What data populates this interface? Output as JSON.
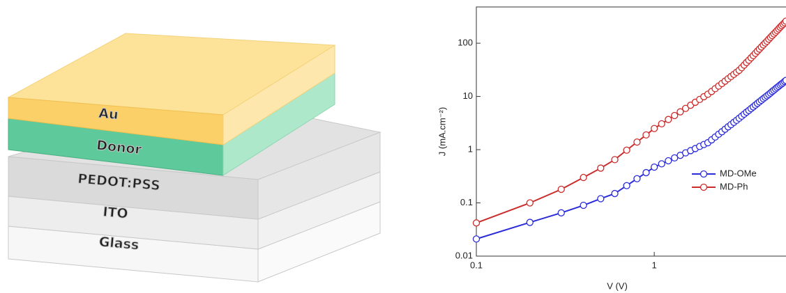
{
  "diagram": {
    "layers": [
      "Au",
      "Donor",
      "PEDOT:PSS",
      "ITO",
      "Glass"
    ]
  },
  "chart_data": {
    "type": "line",
    "xlabel": "V (V)",
    "ylabel": "J (mA.cm⁻²)",
    "xscale": "log",
    "yscale": "log",
    "legend": "lower right",
    "xlim": [
      0.1,
      5.5
    ],
    "ylim": [
      0.01,
      480
    ],
    "xticks": [
      0.1,
      1
    ],
    "yticks": [
      0.01,
      0.1,
      1,
      10,
      100
    ],
    "x": [
      0.1,
      0.2,
      0.3,
      0.4,
      0.5,
      0.6,
      0.7,
      0.8,
      0.9,
      1,
      1.1,
      1.2,
      1.3,
      1.4,
      1.5,
      1.6,
      1.7,
      1.8,
      1.9,
      2,
      2.1,
      2.2,
      2.3,
      2.4,
      2.5,
      2.6,
      2.7,
      2.8,
      2.9,
      3,
      3.1,
      3.2,
      3.3,
      3.4,
      3.5,
      3.6,
      3.7,
      3.8,
      3.9,
      4,
      4.1,
      4.2,
      4.3,
      4.4,
      4.5,
      4.6,
      4.7,
      4.8,
      4.9,
      5,
      5.1,
      5.2,
      5.3,
      5.4,
      5.5
    ],
    "series": [
      {
        "name": "MD-OMe",
        "color": "#2b2bd9",
        "values": [
          0.021,
          0.043,
          0.065,
          0.09,
          0.12,
          0.15,
          0.211,
          0.285,
          0.37,
          0.47,
          0.542,
          0.619,
          0.7,
          0.783,
          0.871,
          0.959,
          1.05,
          1.15,
          1.25,
          1.35,
          1.53,
          1.73,
          1.95,
          2.17,
          2.42,
          2.69,
          2.96,
          3.26,
          3.56,
          3.9,
          4.26,
          4.65,
          5.06,
          5.46,
          5.92,
          6.37,
          6.87,
          7.4,
          7.93,
          8.49,
          9.08,
          9.66,
          10.3,
          10.9,
          11.6,
          12.4,
          13.1,
          13.9,
          14.7,
          15.5,
          16.4,
          17.2,
          18.1,
          19.1,
          20
        ]
      },
      {
        "name": "MD-Ph",
        "color": "#cc2b2b",
        "values": [
          0.042,
          0.1,
          0.18,
          0.3,
          0.45,
          0.65,
          0.98,
          1.39,
          1.89,
          2.5,
          3.06,
          3.69,
          4.38,
          5.14,
          5.96,
          6.84,
          7.77,
          8.79,
          9.89,
          11,
          12.4,
          14,
          15.7,
          17.5,
          19.4,
          21.5,
          23.7,
          26,
          28.4,
          31,
          34.7,
          38.8,
          43.4,
          48,
          53.2,
          58.6,
          64.6,
          71.1,
          77.8,
          85.1,
          92.9,
          101,
          109,
          119,
          129,
          139,
          150,
          161,
          173,
          186,
          200,
          214,
          228,
          243,
          260
        ]
      }
    ]
  }
}
